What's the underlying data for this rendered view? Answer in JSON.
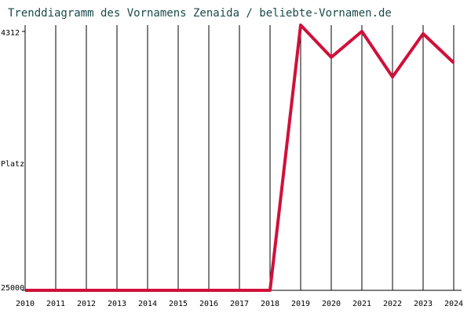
{
  "chart_data": {
    "type": "line",
    "title": "Trenddiagramm des Vornamens Zenaida / beliebte-Vornamen.de",
    "y_label": "Platz",
    "categories": [
      "2010",
      "2011",
      "2012",
      "2013",
      "2014",
      "2015",
      "2016",
      "2017",
      "2018",
      "2019",
      "2020",
      "2021",
      "2022",
      "2023",
      "2024"
    ],
    "series": [
      {
        "name": "Zenaida",
        "color": "#d0103a",
        "values": [
          25000,
          25000,
          25000,
          25000,
          25000,
          25000,
          25000,
          25000,
          25000,
          3810,
          6380,
          4312,
          7950,
          4500,
          6820
        ]
      }
    ],
    "ylim": [
      25000,
      3810
    ],
    "yticks": [
      4312,
      25000
    ],
    "grid": true
  }
}
